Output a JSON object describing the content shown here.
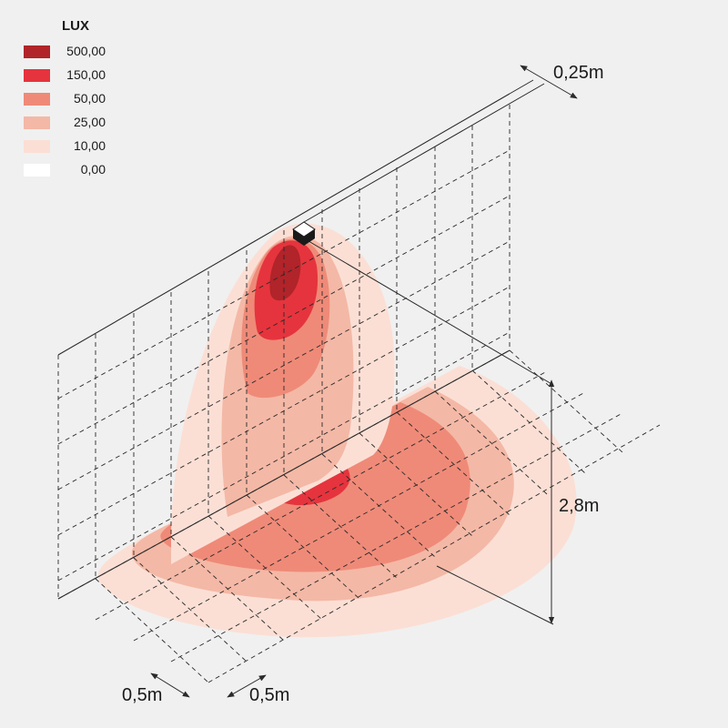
{
  "legend": {
    "title": "LUX",
    "items": [
      {
        "label": "500,00",
        "color": "#b0242a"
      },
      {
        "label": "150,00",
        "color": "#e5343d"
      },
      {
        "label": "50,00",
        "color": "#ef8a78"
      },
      {
        "label": "25,00",
        "color": "#f4b8a6"
      },
      {
        "label": "10,00",
        "color": "#fbdfd5"
      },
      {
        "label": "0,00",
        "color": "#ffffff"
      }
    ]
  },
  "dimensions": {
    "wall_offset": "0,25m",
    "mount_height": "2,8m",
    "grid_x": "0,5m",
    "grid_y": "0,5m"
  },
  "colors": {
    "background": "#f0f0f0",
    "line": "#2a2a2a"
  },
  "icons": {
    "fixture": "luminaire-cube-icon"
  }
}
